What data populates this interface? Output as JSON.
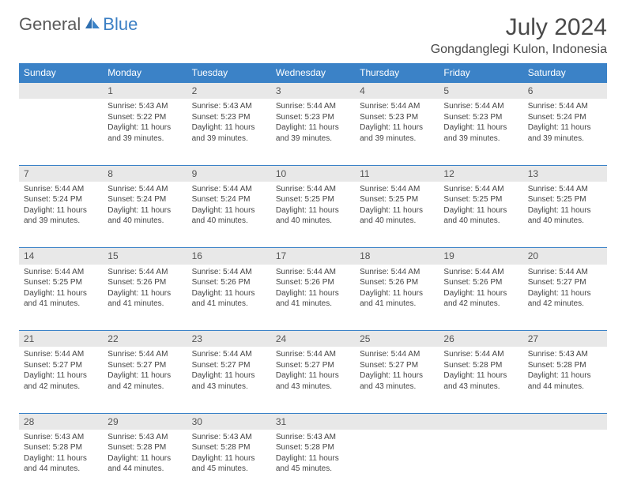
{
  "logo": {
    "part1": "General",
    "part2": "Blue"
  },
  "title": "July 2024",
  "location": "Gongdanglegi Kulon, Indonesia",
  "colors": {
    "header_bg": "#3b82c7",
    "header_text": "#ffffff",
    "daynum_bg": "#e8e8e8",
    "body_text": "#444444",
    "title_text": "#4a4a4a",
    "logo_gray": "#5a5a5a",
    "logo_blue": "#3b7fc4",
    "border": "#3b82c7",
    "page_bg": "#ffffff"
  },
  "typography": {
    "title_fontsize": 30,
    "location_fontsize": 16,
    "header_fontsize": 12,
    "daynum_fontsize": 12,
    "body_fontsize": 10
  },
  "days_of_week": [
    "Sunday",
    "Monday",
    "Tuesday",
    "Wednesday",
    "Thursday",
    "Friday",
    "Saturday"
  ],
  "weeks": [
    {
      "nums": [
        "",
        "1",
        "2",
        "3",
        "4",
        "5",
        "6"
      ],
      "cells": [
        "",
        "Sunrise: 5:43 AM\nSunset: 5:22 PM\nDaylight: 11 hours and 39 minutes.",
        "Sunrise: 5:43 AM\nSunset: 5:23 PM\nDaylight: 11 hours and 39 minutes.",
        "Sunrise: 5:44 AM\nSunset: 5:23 PM\nDaylight: 11 hours and 39 minutes.",
        "Sunrise: 5:44 AM\nSunset: 5:23 PM\nDaylight: 11 hours and 39 minutes.",
        "Sunrise: 5:44 AM\nSunset: 5:23 PM\nDaylight: 11 hours and 39 minutes.",
        "Sunrise: 5:44 AM\nSunset: 5:24 PM\nDaylight: 11 hours and 39 minutes."
      ]
    },
    {
      "nums": [
        "7",
        "8",
        "9",
        "10",
        "11",
        "12",
        "13"
      ],
      "cells": [
        "Sunrise: 5:44 AM\nSunset: 5:24 PM\nDaylight: 11 hours and 39 minutes.",
        "Sunrise: 5:44 AM\nSunset: 5:24 PM\nDaylight: 11 hours and 40 minutes.",
        "Sunrise: 5:44 AM\nSunset: 5:24 PM\nDaylight: 11 hours and 40 minutes.",
        "Sunrise: 5:44 AM\nSunset: 5:25 PM\nDaylight: 11 hours and 40 minutes.",
        "Sunrise: 5:44 AM\nSunset: 5:25 PM\nDaylight: 11 hours and 40 minutes.",
        "Sunrise: 5:44 AM\nSunset: 5:25 PM\nDaylight: 11 hours and 40 minutes.",
        "Sunrise: 5:44 AM\nSunset: 5:25 PM\nDaylight: 11 hours and 40 minutes."
      ]
    },
    {
      "nums": [
        "14",
        "15",
        "16",
        "17",
        "18",
        "19",
        "20"
      ],
      "cells": [
        "Sunrise: 5:44 AM\nSunset: 5:25 PM\nDaylight: 11 hours and 41 minutes.",
        "Sunrise: 5:44 AM\nSunset: 5:26 PM\nDaylight: 11 hours and 41 minutes.",
        "Sunrise: 5:44 AM\nSunset: 5:26 PM\nDaylight: 11 hours and 41 minutes.",
        "Sunrise: 5:44 AM\nSunset: 5:26 PM\nDaylight: 11 hours and 41 minutes.",
        "Sunrise: 5:44 AM\nSunset: 5:26 PM\nDaylight: 11 hours and 41 minutes.",
        "Sunrise: 5:44 AM\nSunset: 5:26 PM\nDaylight: 11 hours and 42 minutes.",
        "Sunrise: 5:44 AM\nSunset: 5:27 PM\nDaylight: 11 hours and 42 minutes."
      ]
    },
    {
      "nums": [
        "21",
        "22",
        "23",
        "24",
        "25",
        "26",
        "27"
      ],
      "cells": [
        "Sunrise: 5:44 AM\nSunset: 5:27 PM\nDaylight: 11 hours and 42 minutes.",
        "Sunrise: 5:44 AM\nSunset: 5:27 PM\nDaylight: 11 hours and 42 minutes.",
        "Sunrise: 5:44 AM\nSunset: 5:27 PM\nDaylight: 11 hours and 43 minutes.",
        "Sunrise: 5:44 AM\nSunset: 5:27 PM\nDaylight: 11 hours and 43 minutes.",
        "Sunrise: 5:44 AM\nSunset: 5:27 PM\nDaylight: 11 hours and 43 minutes.",
        "Sunrise: 5:44 AM\nSunset: 5:28 PM\nDaylight: 11 hours and 43 minutes.",
        "Sunrise: 5:43 AM\nSunset: 5:28 PM\nDaylight: 11 hours and 44 minutes."
      ]
    },
    {
      "nums": [
        "28",
        "29",
        "30",
        "31",
        "",
        "",
        ""
      ],
      "cells": [
        "Sunrise: 5:43 AM\nSunset: 5:28 PM\nDaylight: 11 hours and 44 minutes.",
        "Sunrise: 5:43 AM\nSunset: 5:28 PM\nDaylight: 11 hours and 44 minutes.",
        "Sunrise: 5:43 AM\nSunset: 5:28 PM\nDaylight: 11 hours and 45 minutes.",
        "Sunrise: 5:43 AM\nSunset: 5:28 PM\nDaylight: 11 hours and 45 minutes.",
        "",
        "",
        ""
      ]
    }
  ]
}
